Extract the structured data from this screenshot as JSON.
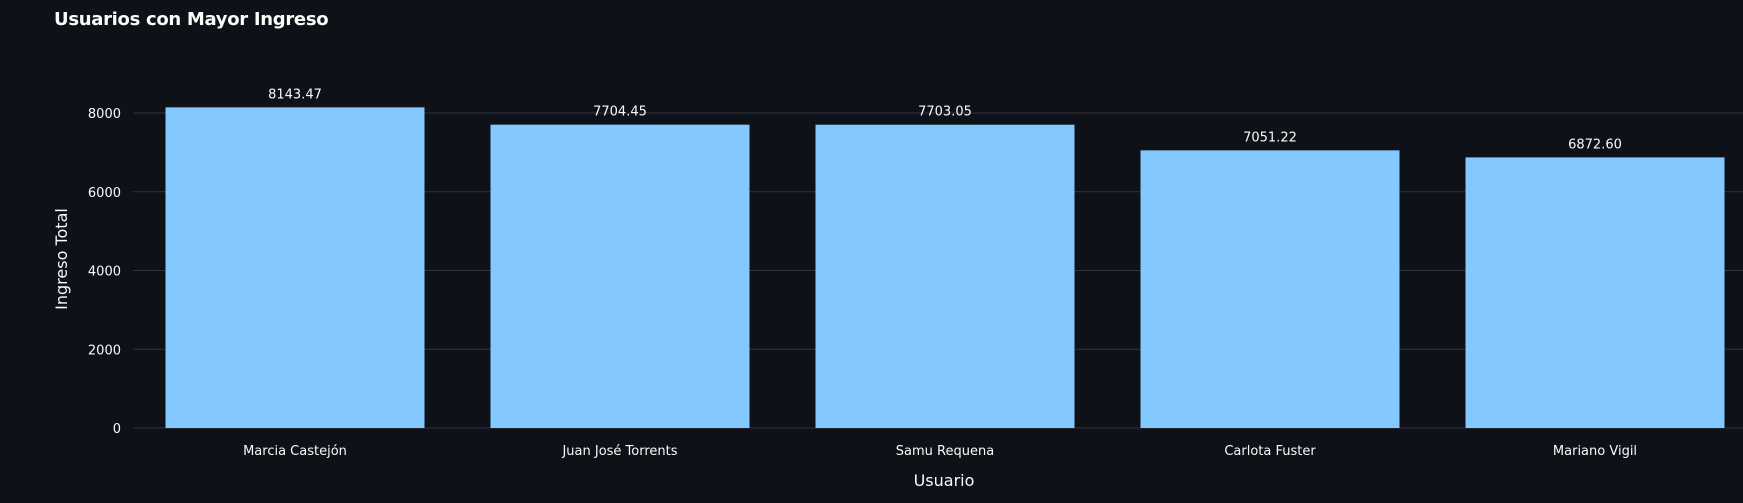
{
  "chart_data": {
    "type": "bar",
    "title": "Usuarios con Mayor Ingreso",
    "xlabel": "Usuario",
    "ylabel": "Ingreso Total",
    "categories": [
      "Marcia Castejón",
      "Juan José Torrents",
      "Samu Requena",
      "Carlota Fuster",
      "Mariano Vigil"
    ],
    "values": [
      8143.47,
      7704.45,
      7703.05,
      7051.22,
      6872.6
    ],
    "value_labels": [
      "8143.47",
      "7704.45",
      "7703.05",
      "7051.22",
      "6872.60"
    ],
    "yticks": [
      0,
      2000,
      4000,
      6000,
      8000
    ],
    "ylim": [
      0,
      8200
    ],
    "grid": true,
    "legend": "none",
    "bar_color": "#83c9ff",
    "background_color": "#0e1117",
    "grid_color": "#31333f"
  }
}
